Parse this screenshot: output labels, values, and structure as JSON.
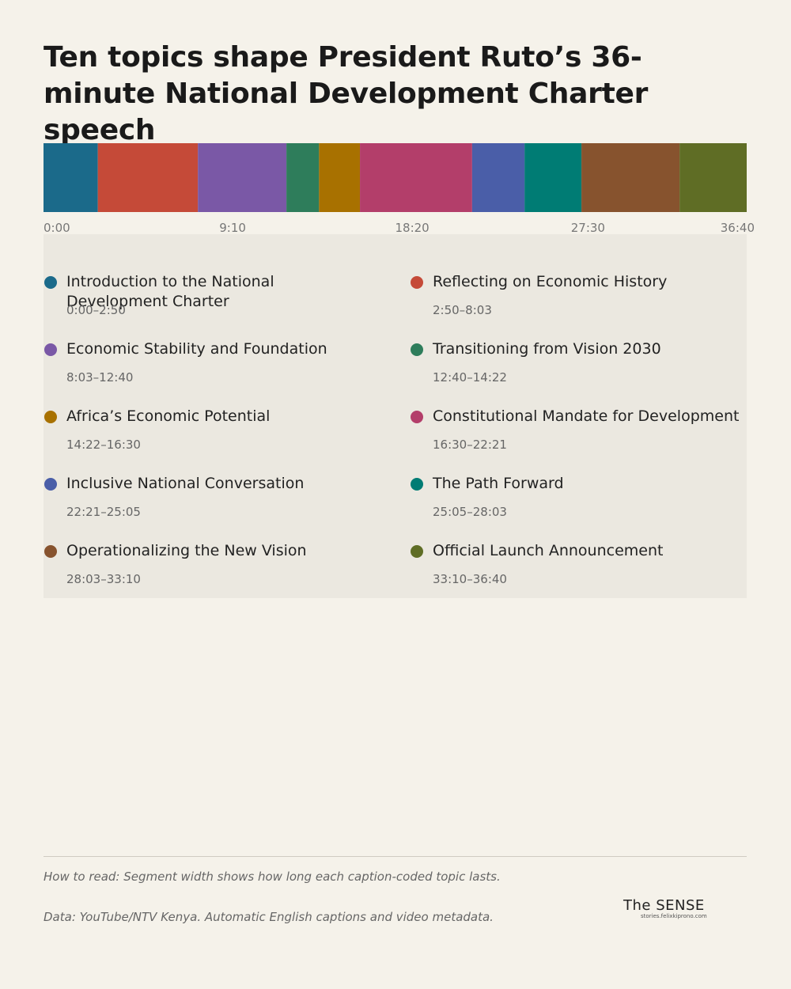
{
  "chart_data": {
    "type": "timeline",
    "title": "Ten topics shape President Ruto’s 36-minute National Development Charter speech",
    "xlim": [
      0,
      2200
    ],
    "xticks": [
      {
        "value": 0,
        "label": "0:00"
      },
      {
        "value": 550,
        "label": "9:10"
      },
      {
        "value": 1100,
        "label": "18:20"
      },
      {
        "value": 1650,
        "label": "27:30"
      },
      {
        "value": 2200,
        "label": "36:40"
      }
    ],
    "segments": [
      {
        "name": "Introduction to the National Development Charter",
        "color": "#1b6a8a",
        "start": 0,
        "end": 170,
        "range_label": "0:00–2:50"
      },
      {
        "name": "Reflecting on Economic History",
        "color": "#c54a38",
        "start": 170,
        "end": 483,
        "range_label": "2:50–8:03"
      },
      {
        "name": "Economic Stability and Foundation",
        "color": "#7a58a6",
        "start": 483,
        "end": 760,
        "range_label": "8:03–12:40"
      },
      {
        "name": "Transitioning from Vision 2030",
        "color": "#2e7d5b",
        "start": 760,
        "end": 862,
        "range_label": "12:40–14:22"
      },
      {
        "name": "Africa’s Economic Potential",
        "color": "#a87100",
        "start": 862,
        "end": 990,
        "range_label": "14:22–16:30"
      },
      {
        "name": "Constitutional Mandate for Development",
        "color": "#b33e6a",
        "start": 990,
        "end": 1341,
        "range_label": "16:30–22:21"
      },
      {
        "name": "Inclusive National Conversation",
        "color": "#4a5ea8",
        "start": 1341,
        "end": 1505,
        "range_label": "22:21–25:05"
      },
      {
        "name": "The Path Forward",
        "color": "#007c74",
        "start": 1505,
        "end": 1683,
        "range_label": "25:05–28:03"
      },
      {
        "name": "Operationalizing the New Vision",
        "color": "#87532e",
        "start": 1683,
        "end": 1990,
        "range_label": "28:03–33:10"
      },
      {
        "name": "Official Launch Announcement",
        "color": "#5f6d25",
        "start": 1990,
        "end": 2200,
        "range_label": "33:10–36:40"
      }
    ],
    "notes": [
      "How to read: Segment width shows how long each caption-coded topic lasts.",
      "Data: YouTube/NTV Kenya. Automatic English captions and video metadata."
    ],
    "logo": "The SENSE",
    "logo_subtitle": "stories.felixkiprono.com"
  }
}
